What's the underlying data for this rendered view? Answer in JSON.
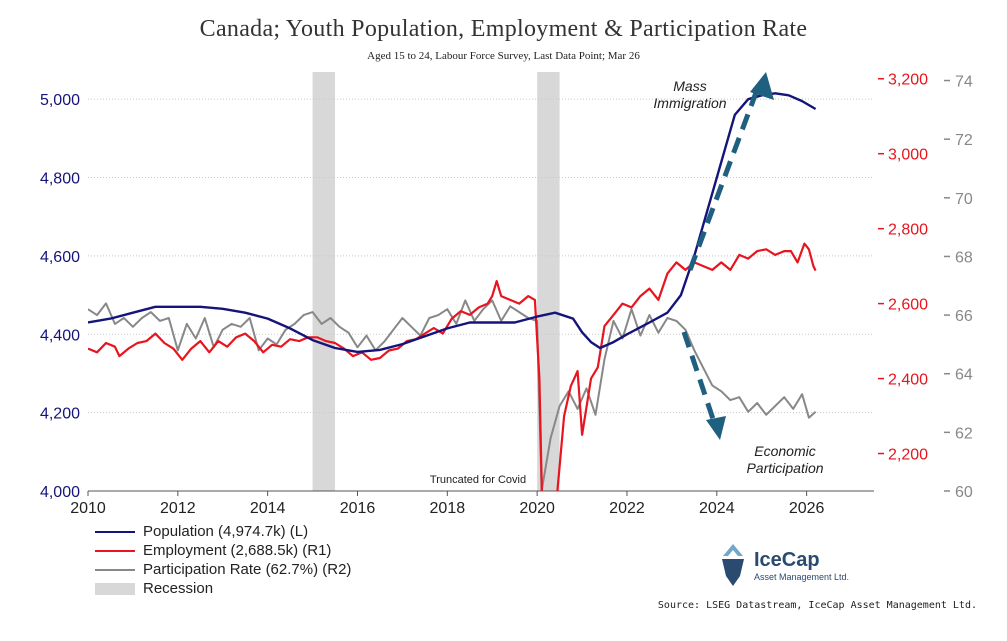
{
  "title": "Canada; Youth Population, Employment & Participation Rate",
  "subtitle": "Aged 15 to 24, Labour Force Survey, Last Data Point; Mar 26",
  "source": "Source: LSEG Datastream, IceCap Asset Management Ltd.",
  "logo": {
    "name": "IceCap",
    "sub": "Asset Management Ltd."
  },
  "colors": {
    "population": "#14147a",
    "employment": "#e8141e",
    "participation": "#888888",
    "recession": "#d8d8d8",
    "arrow": "#1f5f7f"
  },
  "annotations": {
    "mass_immigration": [
      "Mass",
      "Immigration"
    ],
    "economic_participation": [
      "Economic",
      "Participation"
    ],
    "truncated": "Truncated for Covid"
  },
  "legend": [
    {
      "label": "Population (4,974.7k) (L)",
      "color": "#14147a",
      "kind": "line"
    },
    {
      "label": "Employment (2,688.5k) (R1)",
      "color": "#e8141e",
      "kind": "line"
    },
    {
      "label": "Participation Rate (62.7%) (R2)",
      "color": "#888888",
      "kind": "line"
    },
    {
      "label": "Recession",
      "color": "#d8d8d8",
      "kind": "box"
    }
  ],
  "chart_data": {
    "type": "line",
    "title": "Canada; Youth Population, Employment & Participation Rate",
    "subtitle": "Aged 15 to 24, Labour Force Survey, Last Data Point; Mar 26",
    "x_range": [
      2010,
      2027.5
    ],
    "x_ticks": [
      "2010",
      "2012",
      "2014",
      "2016",
      "2018",
      "2020",
      "2022",
      "2024",
      "2026"
    ],
    "axes": {
      "left": {
        "range": [
          4000,
          5100
        ],
        "ticks": [
          "4,000",
          "4,200",
          "4,400",
          "4,600",
          "4,800",
          "5,000"
        ],
        "color": "#14147a"
      },
      "right1": {
        "range": [
          2100,
          3250
        ],
        "ticks": [
          "2,200",
          "2,400",
          "2,600",
          "2,800",
          "3,000",
          "3,200"
        ],
        "color": "#e8141e"
      },
      "right2": {
        "range": [
          60,
          74.7
        ],
        "ticks": [
          "60",
          "62",
          "64",
          "66",
          "68",
          "70",
          "72",
          "74"
        ],
        "color": "#888888"
      }
    },
    "grid": true,
    "recessions": [
      [
        2015.0,
        2015.5
      ],
      [
        2020.0,
        2020.5
      ]
    ],
    "series": [
      {
        "name": "Population (4,974.7k) (L)",
        "axis": "left",
        "points": [
          [
            2010.0,
            4430
          ],
          [
            2010.5,
            4440
          ],
          [
            2011.0,
            4455
          ],
          [
            2011.5,
            4470
          ],
          [
            2012.0,
            4470
          ],
          [
            2012.5,
            4470
          ],
          [
            2013.0,
            4465
          ],
          [
            2013.5,
            4455
          ],
          [
            2014.0,
            4440
          ],
          [
            2014.5,
            4415
          ],
          [
            2015.0,
            4385
          ],
          [
            2015.5,
            4365
          ],
          [
            2016.0,
            4355
          ],
          [
            2016.5,
            4360
          ],
          [
            2017.0,
            4375
          ],
          [
            2017.5,
            4395
          ],
          [
            2018.0,
            4415
          ],
          [
            2018.5,
            4430
          ],
          [
            2019.0,
            4430
          ],
          [
            2019.5,
            4430
          ],
          [
            2020.0,
            4445
          ],
          [
            2020.4,
            4455
          ],
          [
            2020.8,
            4440
          ],
          [
            2021.0,
            4405
          ],
          [
            2021.2,
            4380
          ],
          [
            2021.4,
            4365
          ],
          [
            2021.7,
            4380
          ],
          [
            2022.0,
            4400
          ],
          [
            2022.5,
            4430
          ],
          [
            2022.9,
            4455
          ],
          [
            2023.2,
            4500
          ],
          [
            2023.5,
            4600
          ],
          [
            2023.8,
            4720
          ],
          [
            2024.1,
            4840
          ],
          [
            2024.4,
            4960
          ],
          [
            2024.7,
            5000
          ],
          [
            2025.0,
            5010
          ],
          [
            2025.3,
            5015
          ],
          [
            2025.6,
            5010
          ],
          [
            2025.9,
            4995
          ],
          [
            2026.2,
            4975
          ]
        ]
      },
      {
        "name": "Employment (2,688.5k) (R1)",
        "axis": "right1",
        "points": [
          [
            2010.0,
            2480
          ],
          [
            2010.2,
            2470
          ],
          [
            2010.4,
            2495
          ],
          [
            2010.6,
            2485
          ],
          [
            2010.7,
            2460
          ],
          [
            2010.9,
            2480
          ],
          [
            2011.1,
            2495
          ],
          [
            2011.3,
            2500
          ],
          [
            2011.5,
            2520
          ],
          [
            2011.7,
            2495
          ],
          [
            2011.9,
            2480
          ],
          [
            2012.1,
            2450
          ],
          [
            2012.3,
            2480
          ],
          [
            2012.5,
            2500
          ],
          [
            2012.7,
            2470
          ],
          [
            2012.9,
            2500
          ],
          [
            2013.1,
            2485
          ],
          [
            2013.3,
            2510
          ],
          [
            2013.5,
            2520
          ],
          [
            2013.7,
            2500
          ],
          [
            2013.9,
            2470
          ],
          [
            2014.1,
            2490
          ],
          [
            2014.3,
            2485
          ],
          [
            2014.5,
            2505
          ],
          [
            2014.7,
            2500
          ],
          [
            2014.9,
            2510
          ],
          [
            2015.1,
            2510
          ],
          [
            2015.3,
            2500
          ],
          [
            2015.5,
            2495
          ],
          [
            2015.7,
            2480
          ],
          [
            2015.9,
            2460
          ],
          [
            2016.1,
            2470
          ],
          [
            2016.3,
            2450
          ],
          [
            2016.5,
            2455
          ],
          [
            2016.7,
            2475
          ],
          [
            2016.9,
            2480
          ],
          [
            2017.1,
            2500
          ],
          [
            2017.3,
            2505
          ],
          [
            2017.5,
            2520
          ],
          [
            2017.7,
            2535
          ],
          [
            2017.9,
            2520
          ],
          [
            2018.1,
            2560
          ],
          [
            2018.3,
            2580
          ],
          [
            2018.5,
            2570
          ],
          [
            2018.7,
            2590
          ],
          [
            2018.9,
            2600
          ],
          [
            2019.0,
            2620
          ],
          [
            2019.1,
            2660
          ],
          [
            2019.2,
            2620
          ],
          [
            2019.4,
            2610
          ],
          [
            2019.6,
            2600
          ],
          [
            2019.8,
            2620
          ],
          [
            2019.95,
            2610
          ],
          [
            2020.05,
            2400
          ],
          [
            2020.15,
            1850
          ],
          [
            2020.3,
            1850
          ],
          [
            2020.45,
            2100
          ],
          [
            2020.6,
            2300
          ],
          [
            2020.75,
            2380
          ],
          [
            2020.9,
            2420
          ],
          [
            2021.0,
            2250
          ],
          [
            2021.2,
            2400
          ],
          [
            2021.35,
            2430
          ],
          [
            2021.5,
            2540
          ],
          [
            2021.7,
            2570
          ],
          [
            2021.9,
            2600
          ],
          [
            2022.1,
            2590
          ],
          [
            2022.3,
            2620
          ],
          [
            2022.5,
            2640
          ],
          [
            2022.7,
            2610
          ],
          [
            2022.9,
            2680
          ],
          [
            2023.1,
            2710
          ],
          [
            2023.3,
            2690
          ],
          [
            2023.5,
            2710
          ],
          [
            2023.7,
            2700
          ],
          [
            2023.9,
            2690
          ],
          [
            2024.1,
            2710
          ],
          [
            2024.3,
            2690
          ],
          [
            2024.5,
            2730
          ],
          [
            2024.7,
            2720
          ],
          [
            2024.9,
            2740
          ],
          [
            2025.1,
            2745
          ],
          [
            2025.3,
            2730
          ],
          [
            2025.5,
            2740
          ],
          [
            2025.65,
            2740
          ],
          [
            2025.8,
            2710
          ],
          [
            2025.95,
            2760
          ],
          [
            2026.05,
            2745
          ],
          [
            2026.15,
            2700
          ],
          [
            2026.2,
            2688
          ]
        ]
      },
      {
        "name": "Participation Rate (62.7%) (R2)",
        "axis": "right2",
        "points": [
          [
            2010.0,
            66.2
          ],
          [
            2010.2,
            66.0
          ],
          [
            2010.4,
            66.4
          ],
          [
            2010.6,
            65.7
          ],
          [
            2010.8,
            65.9
          ],
          [
            2011.0,
            65.6
          ],
          [
            2011.2,
            65.9
          ],
          [
            2011.4,
            66.1
          ],
          [
            2011.6,
            65.8
          ],
          [
            2011.8,
            65.9
          ],
          [
            2012.0,
            64.8
          ],
          [
            2012.2,
            65.7
          ],
          [
            2012.4,
            65.2
          ],
          [
            2012.6,
            65.9
          ],
          [
            2012.8,
            64.9
          ],
          [
            2013.0,
            65.5
          ],
          [
            2013.2,
            65.7
          ],
          [
            2013.4,
            65.6
          ],
          [
            2013.6,
            65.9
          ],
          [
            2013.8,
            64.8
          ],
          [
            2014.0,
            65.2
          ],
          [
            2014.2,
            65.0
          ],
          [
            2014.4,
            65.5
          ],
          [
            2014.6,
            65.7
          ],
          [
            2014.8,
            66.0
          ],
          [
            2015.0,
            66.1
          ],
          [
            2015.2,
            65.7
          ],
          [
            2015.4,
            65.9
          ],
          [
            2015.6,
            65.6
          ],
          [
            2015.8,
            65.4
          ],
          [
            2016.0,
            64.9
          ],
          [
            2016.2,
            65.3
          ],
          [
            2016.4,
            64.8
          ],
          [
            2016.6,
            65.1
          ],
          [
            2016.8,
            65.5
          ],
          [
            2017.0,
            65.9
          ],
          [
            2017.2,
            65.6
          ],
          [
            2017.4,
            65.3
          ],
          [
            2017.6,
            65.9
          ],
          [
            2017.8,
            66.0
          ],
          [
            2018.0,
            66.2
          ],
          [
            2018.2,
            65.7
          ],
          [
            2018.4,
            66.5
          ],
          [
            2018.6,
            65.8
          ],
          [
            2018.8,
            66.2
          ],
          [
            2019.0,
            66.5
          ],
          [
            2019.2,
            65.8
          ],
          [
            2019.4,
            66.3
          ],
          [
            2019.6,
            66.1
          ],
          [
            2019.8,
            65.9
          ],
          [
            2020.0,
            65.8
          ],
          [
            2020.1,
            60.0
          ],
          [
            2020.3,
            61.8
          ],
          [
            2020.5,
            62.9
          ],
          [
            2020.7,
            63.4
          ],
          [
            2020.9,
            62.8
          ],
          [
            2021.1,
            63.5
          ],
          [
            2021.3,
            62.6
          ],
          [
            2021.5,
            64.5
          ],
          [
            2021.7,
            65.8
          ],
          [
            2021.9,
            65.2
          ],
          [
            2022.1,
            66.2
          ],
          [
            2022.3,
            65.3
          ],
          [
            2022.5,
            66.0
          ],
          [
            2022.7,
            65.4
          ],
          [
            2022.9,
            65.9
          ],
          [
            2023.1,
            65.8
          ],
          [
            2023.3,
            65.5
          ],
          [
            2023.5,
            64.8
          ],
          [
            2023.7,
            64.2
          ],
          [
            2023.9,
            63.6
          ],
          [
            2024.1,
            63.4
          ],
          [
            2024.3,
            63.1
          ],
          [
            2024.5,
            63.2
          ],
          [
            2024.7,
            62.7
          ],
          [
            2024.9,
            63.0
          ],
          [
            2025.1,
            62.6
          ],
          [
            2025.3,
            62.9
          ],
          [
            2025.5,
            63.2
          ],
          [
            2025.7,
            62.8
          ],
          [
            2025.9,
            63.3
          ],
          [
            2026.05,
            62.5
          ],
          [
            2026.2,
            62.7
          ]
        ]
      }
    ]
  }
}
